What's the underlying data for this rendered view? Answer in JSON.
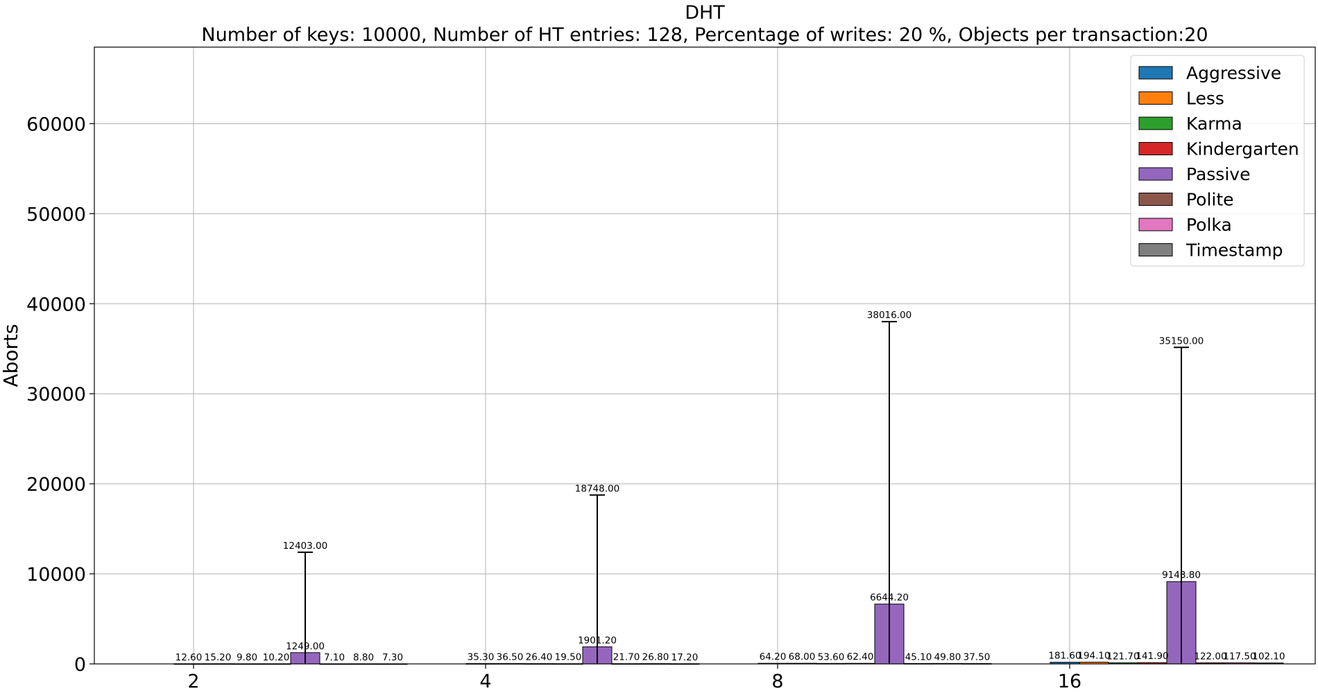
{
  "chart_data": {
    "type": "bar",
    "title": "DHT",
    "subtitle": "Number of keys: 10000, Number of HT entries: 128, Percentage of writes: 20 %, Objects per transaction:20",
    "xlabel": "",
    "ylabel": "Aborts",
    "categories": [
      "2",
      "4",
      "8",
      "16"
    ],
    "ylim": [
      0,
      68500
    ],
    "yticks": [
      0,
      10000,
      20000,
      30000,
      40000,
      50000,
      60000
    ],
    "ytick_labels": [
      "0",
      "10000",
      "20000",
      "30000",
      "40000",
      "50000",
      "60000"
    ],
    "grid": true,
    "legend_position": "top-right",
    "series": [
      {
        "name": "Aggressive",
        "color": "#1f77b4",
        "values": [
          12.6,
          35.3,
          64.2,
          181.6
        ],
        "labels": [
          "12.60",
          "35.30",
          "64.20",
          "181.60"
        ],
        "errors": [
          null,
          null,
          null,
          null
        ],
        "error_labels": [
          "",
          "",
          "",
          ""
        ]
      },
      {
        "name": "Less",
        "color": "#ff7f0e",
        "values": [
          15.2,
          36.5,
          68.0,
          194.1
        ],
        "labels": [
          "15.20",
          "36.50",
          "68.00",
          "194.10"
        ],
        "errors": [
          null,
          null,
          null,
          null
        ],
        "error_labels": [
          "",
          "",
          "",
          ""
        ]
      },
      {
        "name": "Karma",
        "color": "#2ca02c",
        "values": [
          9.8,
          26.4,
          53.6,
          121.7
        ],
        "labels": [
          "9.80",
          "26.40",
          "53.60",
          "121.70"
        ],
        "errors": [
          null,
          null,
          null,
          null
        ],
        "error_labels": [
          "",
          "",
          "",
          ""
        ]
      },
      {
        "name": "Kindergarten",
        "color": "#d62728",
        "values": [
          10.2,
          19.5,
          62.4,
          141.9
        ],
        "labels": [
          "10.20",
          "19.50",
          "62.40",
          "141.90"
        ],
        "errors": [
          null,
          null,
          null,
          null
        ],
        "error_labels": [
          "",
          "",
          "",
          ""
        ]
      },
      {
        "name": "Passive",
        "color": "#9467bd",
        "values": [
          1249.0,
          1901.2,
          6644.2,
          9143.8
        ],
        "labels": [
          "1249.00",
          "1901.20",
          "6644.20",
          "9143.80"
        ],
        "errors": [
          12403.0,
          18748.0,
          38016.0,
          35150.0
        ],
        "error_labels": [
          "12403.00",
          "18748.00",
          "38016.00",
          "35150.00"
        ]
      },
      {
        "name": "Polite",
        "color": "#8c564b",
        "values": [
          7.1,
          21.7,
          45.1,
          122.0
        ],
        "labels": [
          "7.10",
          "21.70",
          "45.10",
          "122.00"
        ],
        "errors": [
          null,
          null,
          null,
          null
        ],
        "error_labels": [
          "",
          "",
          "",
          ""
        ]
      },
      {
        "name": "Polka",
        "color": "#e377c2",
        "values": [
          8.8,
          26.8,
          49.8,
          117.5
        ],
        "labels": [
          "8.80",
          "26.80",
          "49.80",
          "117.50"
        ],
        "errors": [
          null,
          null,
          null,
          null
        ],
        "error_labels": [
          "",
          "",
          "",
          ""
        ]
      },
      {
        "name": "Timestamp",
        "color": "#7f7f7f",
        "values": [
          7.3,
          17.2,
          37.5,
          102.1
        ],
        "labels": [
          "7.30",
          "17.20",
          "37.50",
          "102.10"
        ],
        "errors": [
          null,
          null,
          null,
          null
        ],
        "error_labels": [
          "",
          "",
          "",
          ""
        ]
      }
    ]
  }
}
